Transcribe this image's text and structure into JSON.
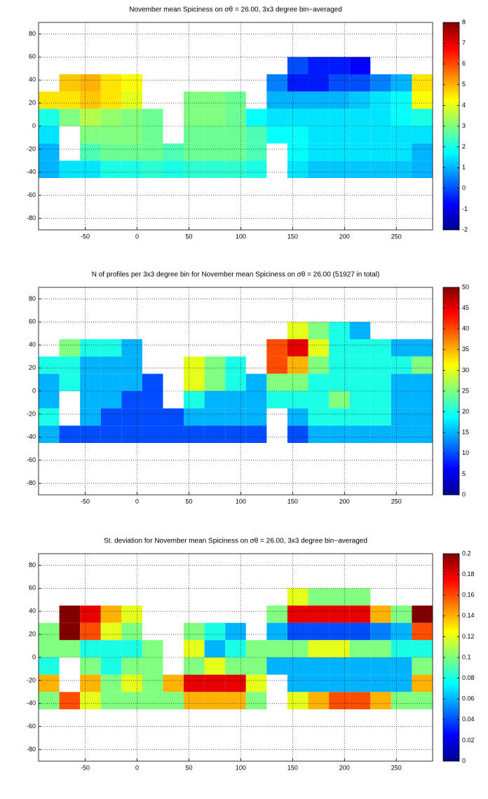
{
  "chart_data": [
    {
      "type": "heatmap",
      "title": "November mean Spiciness on σθ = 26.00, 3x3 degree bin−averaged",
      "colormap": "jet",
      "grid": true,
      "xlim": [
        -95,
        285
      ],
      "ylim": [
        -90,
        90
      ],
      "xticks": [
        -50,
        0,
        50,
        100,
        150,
        200,
        250
      ],
      "yticks": [
        -80,
        -60,
        -40,
        -20,
        0,
        20,
        40,
        60,
        80
      ],
      "clim": [
        -2,
        8
      ],
      "cticks": [
        -2,
        -1,
        0,
        1,
        2,
        3,
        4,
        5,
        6,
        7,
        8
      ],
      "lon_edges": [
        -95,
        -75,
        -55,
        -35,
        -15,
        5,
        25,
        45,
        65,
        85,
        105,
        125,
        145,
        165,
        185,
        205,
        225,
        245,
        265,
        285
      ],
      "lat_edges": [
        60,
        45,
        30,
        15,
        0,
        -15,
        -30,
        -45
      ],
      "z": [
        [
          null,
          null,
          null,
          null,
          null,
          null,
          null,
          null,
          null,
          null,
          null,
          null,
          0,
          -0.5,
          -0.5,
          -0.8,
          null,
          null,
          null
        ],
        [
          null,
          4.8,
          5,
          4.5,
          4.2,
          null,
          null,
          null,
          null,
          null,
          null,
          0.5,
          -0.5,
          -0.5,
          0,
          0,
          0.5,
          1,
          4.5
        ],
        [
          4.5,
          4.5,
          4.8,
          4.5,
          4,
          null,
          null,
          3,
          3,
          2.8,
          null,
          1,
          1,
          1,
          1,
          1.2,
          1.5,
          1.8,
          4.2
        ],
        [
          2,
          3,
          3.5,
          3.2,
          3,
          2.8,
          null,
          3,
          3,
          2.8,
          1.8,
          1.5,
          1.5,
          1.5,
          1.5,
          1.5,
          1.5,
          1.8,
          2
        ],
        [
          1.5,
          null,
          3,
          3,
          3,
          2.8,
          null,
          2.8,
          2.8,
          2.8,
          2.5,
          1.8,
          1.8,
          1.5,
          1.5,
          1.5,
          1.5,
          1.5,
          1.5
        ],
        [
          1,
          null,
          2.5,
          2.8,
          2.8,
          2.8,
          2.5,
          2.8,
          2.8,
          2.8,
          2.5,
          null,
          1.8,
          1.5,
          1.5,
          1.5,
          1.5,
          1.5,
          1
        ],
        [
          1,
          1.5,
          1.5,
          2,
          2,
          2.2,
          2,
          2.2,
          2.2,
          2.2,
          2,
          null,
          1.5,
          1.2,
          1.2,
          1.2,
          1.2,
          1.2,
          1
        ]
      ]
    },
    {
      "type": "heatmap",
      "title": "N of profiles per 3x3 degree bin for November mean Spiciness on σθ = 26.00 (51927 in total)",
      "colormap": "jet",
      "grid": true,
      "xlim": [
        -95,
        285
      ],
      "ylim": [
        -90,
        90
      ],
      "xticks": [
        -50,
        0,
        50,
        100,
        150,
        200,
        250
      ],
      "yticks": [
        -80,
        -60,
        -40,
        -20,
        0,
        20,
        40,
        60,
        80
      ],
      "clim": [
        0,
        50
      ],
      "cticks": [
        0,
        5,
        10,
        15,
        20,
        25,
        30,
        35,
        40,
        45,
        50
      ],
      "lon_edges": [
        -95,
        -75,
        -55,
        -35,
        -15,
        5,
        25,
        45,
        65,
        85,
        105,
        125,
        145,
        165,
        185,
        205,
        225,
        245,
        265,
        285
      ],
      "lat_edges": [
        60,
        45,
        30,
        15,
        0,
        -15,
        -30,
        -45
      ],
      "z": [
        [
          null,
          null,
          null,
          null,
          null,
          null,
          null,
          null,
          null,
          null,
          null,
          null,
          30,
          25,
          20,
          15,
          null,
          null,
          null
        ],
        [
          null,
          25,
          20,
          20,
          15,
          null,
          null,
          null,
          null,
          null,
          null,
          40,
          45,
          30,
          20,
          20,
          20,
          15,
          15
        ],
        [
          20,
          20,
          15,
          15,
          15,
          null,
          null,
          30,
          25,
          20,
          null,
          40,
          35,
          25,
          20,
          20,
          20,
          20,
          25
        ],
        [
          15,
          20,
          15,
          15,
          15,
          10,
          null,
          30,
          25,
          20,
          15,
          25,
          25,
          20,
          20,
          20,
          20,
          15,
          15
        ],
        [
          15,
          null,
          15,
          15,
          10,
          10,
          null,
          20,
          15,
          15,
          15,
          20,
          20,
          20,
          25,
          20,
          20,
          15,
          15
        ],
        [
          20,
          null,
          15,
          10,
          10,
          10,
          10,
          15,
          15,
          15,
          15,
          null,
          15,
          20,
          20,
          20,
          20,
          15,
          15
        ],
        [
          15,
          10,
          10,
          10,
          10,
          10,
          10,
          10,
          10,
          10,
          10,
          null,
          10,
          15,
          15,
          15,
          15,
          15,
          15
        ]
      ]
    },
    {
      "type": "heatmap",
      "title": "St. deviation for November mean Spiciness on σθ = 26.00, 3x3 degree bin−averaged",
      "colormap": "jet",
      "grid": true,
      "xlim": [
        -95,
        285
      ],
      "ylim": [
        -90,
        90
      ],
      "xticks": [
        -50,
        0,
        50,
        100,
        150,
        200,
        250
      ],
      "yticks": [
        -80,
        -60,
        -40,
        -20,
        0,
        20,
        40,
        60,
        80
      ],
      "clim": [
        0,
        0.2
      ],
      "cticks": [
        0,
        0.02,
        0.04,
        0.06,
        0.08,
        0.1,
        0.12,
        0.14,
        0.16,
        0.18,
        0.2
      ],
      "lon_edges": [
        -95,
        -75,
        -55,
        -35,
        -15,
        5,
        25,
        45,
        65,
        85,
        105,
        125,
        145,
        165,
        185,
        205,
        225,
        245,
        265,
        285
      ],
      "lat_edges": [
        60,
        45,
        30,
        15,
        0,
        -15,
        -30,
        -45
      ],
      "z": [
        [
          null,
          null,
          null,
          null,
          null,
          null,
          null,
          null,
          null,
          null,
          null,
          null,
          0.12,
          0.1,
          0.1,
          0.1,
          null,
          null,
          null
        ],
        [
          null,
          0.2,
          0.18,
          0.14,
          0.12,
          null,
          null,
          null,
          null,
          null,
          null,
          0.1,
          0.18,
          0.18,
          0.18,
          0.18,
          0.14,
          0.1,
          0.2
        ],
        [
          0.1,
          0.2,
          0.16,
          0.12,
          0.1,
          null,
          null,
          0.1,
          0.08,
          0.06,
          null,
          0.06,
          0.04,
          0.04,
          0.04,
          0.04,
          0.05,
          0.06,
          0.16
        ],
        [
          0.1,
          0.1,
          0.08,
          0.08,
          0.08,
          0.1,
          null,
          0.12,
          0.06,
          0.08,
          0.1,
          0.1,
          0.1,
          0.12,
          0.12,
          0.1,
          0.1,
          0.08,
          0.08
        ],
        [
          0.08,
          null,
          0.1,
          0.08,
          0.1,
          0.1,
          null,
          0.1,
          0.12,
          0.1,
          0.1,
          0.06,
          0.06,
          0.06,
          0.06,
          0.06,
          0.06,
          0.06,
          0.1
        ],
        [
          0.14,
          null,
          0.14,
          0.1,
          0.12,
          0.1,
          0.14,
          0.18,
          0.18,
          0.18,
          0.12,
          null,
          0.06,
          0.06,
          0.06,
          0.06,
          0.06,
          0.06,
          0.14
        ],
        [
          0.1,
          0.16,
          0.12,
          0.1,
          0.1,
          0.1,
          0.1,
          0.14,
          0.14,
          0.14,
          0.1,
          null,
          0.12,
          0.14,
          0.16,
          0.16,
          0.14,
          0.1,
          0.1
        ]
      ]
    }
  ]
}
